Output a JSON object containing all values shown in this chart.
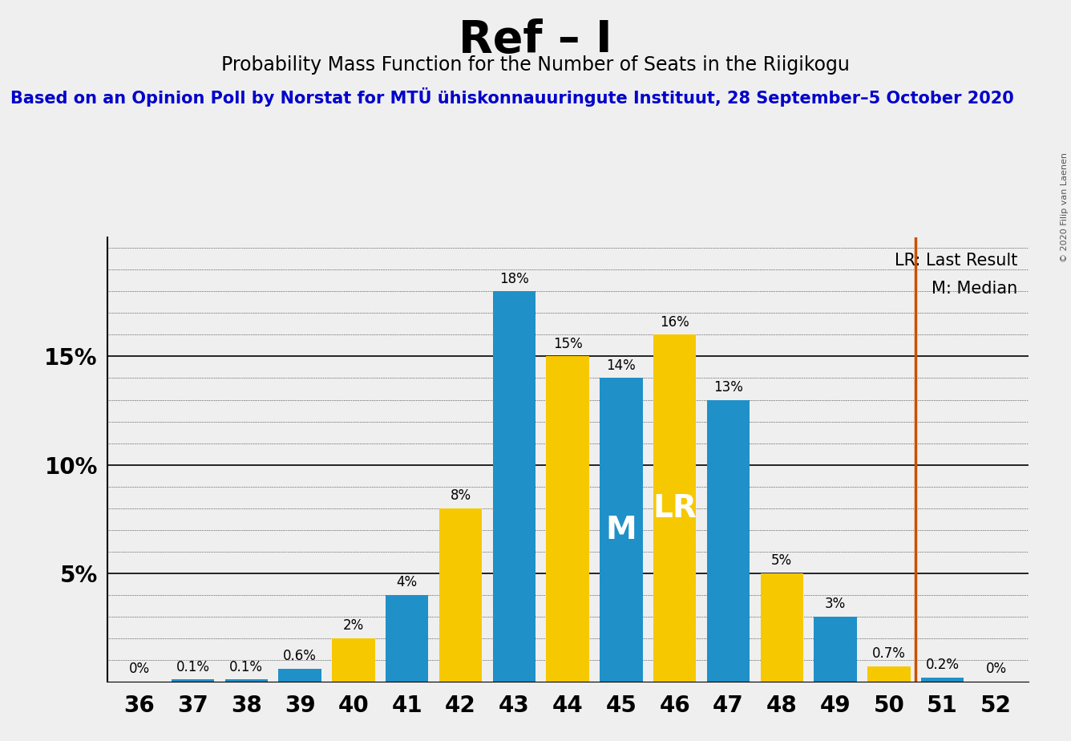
{
  "title": "Ref – I",
  "subtitle": "Probability Mass Function for the Number of Seats in the Riigikogu",
  "source_text": "Based on an Opinion Poll by Norstat for MTÜ ühiskonnauuringute Instituut, 28 September–5 October 2020",
  "copyright_text": "© 2020 Filip van Laenen",
  "seats": [
    36,
    37,
    38,
    39,
    40,
    41,
    42,
    43,
    44,
    45,
    46,
    47,
    48,
    49,
    50,
    51,
    52
  ],
  "blue_values": [
    0.0,
    0.1,
    0.1,
    0.6,
    0.0,
    4.0,
    0.0,
    18.0,
    0.0,
    14.0,
    0.0,
    13.0,
    0.0,
    3.0,
    0.0,
    0.2,
    0.0
  ],
  "yellow_values": [
    0.0,
    0.0,
    0.0,
    0.0,
    2.0,
    0.0,
    8.0,
    0.0,
    15.0,
    0.0,
    16.0,
    0.0,
    5.0,
    0.0,
    0.7,
    0.0,
    0.0
  ],
  "blue_labels": [
    "0%",
    "0.1%",
    "0.1%",
    "0.6%",
    "",
    "4%",
    "",
    "18%",
    "",
    "14%",
    "",
    "13%",
    "",
    "3%",
    "",
    "0.2%",
    "0%"
  ],
  "yellow_labels": [
    "",
    "",
    "",
    "",
    "2%",
    "",
    "8%",
    "",
    "15%",
    "",
    "16%",
    "",
    "5%",
    "",
    "0.7%",
    "",
    ""
  ],
  "median_label_seat": 45,
  "lr_label_seat": 46,
  "median_line_x": 50.5,
  "blue_color": "#2090C8",
  "yellow_color": "#F5C800",
  "median_line_color": "#C85000",
  "background_color": "#EFEFEF",
  "title_fontsize": 40,
  "subtitle_fontsize": 17,
  "source_fontsize": 15,
  "ylim": [
    0,
    20.5
  ],
  "legend_lr": "LR: Last Result",
  "legend_m": "M: Median"
}
